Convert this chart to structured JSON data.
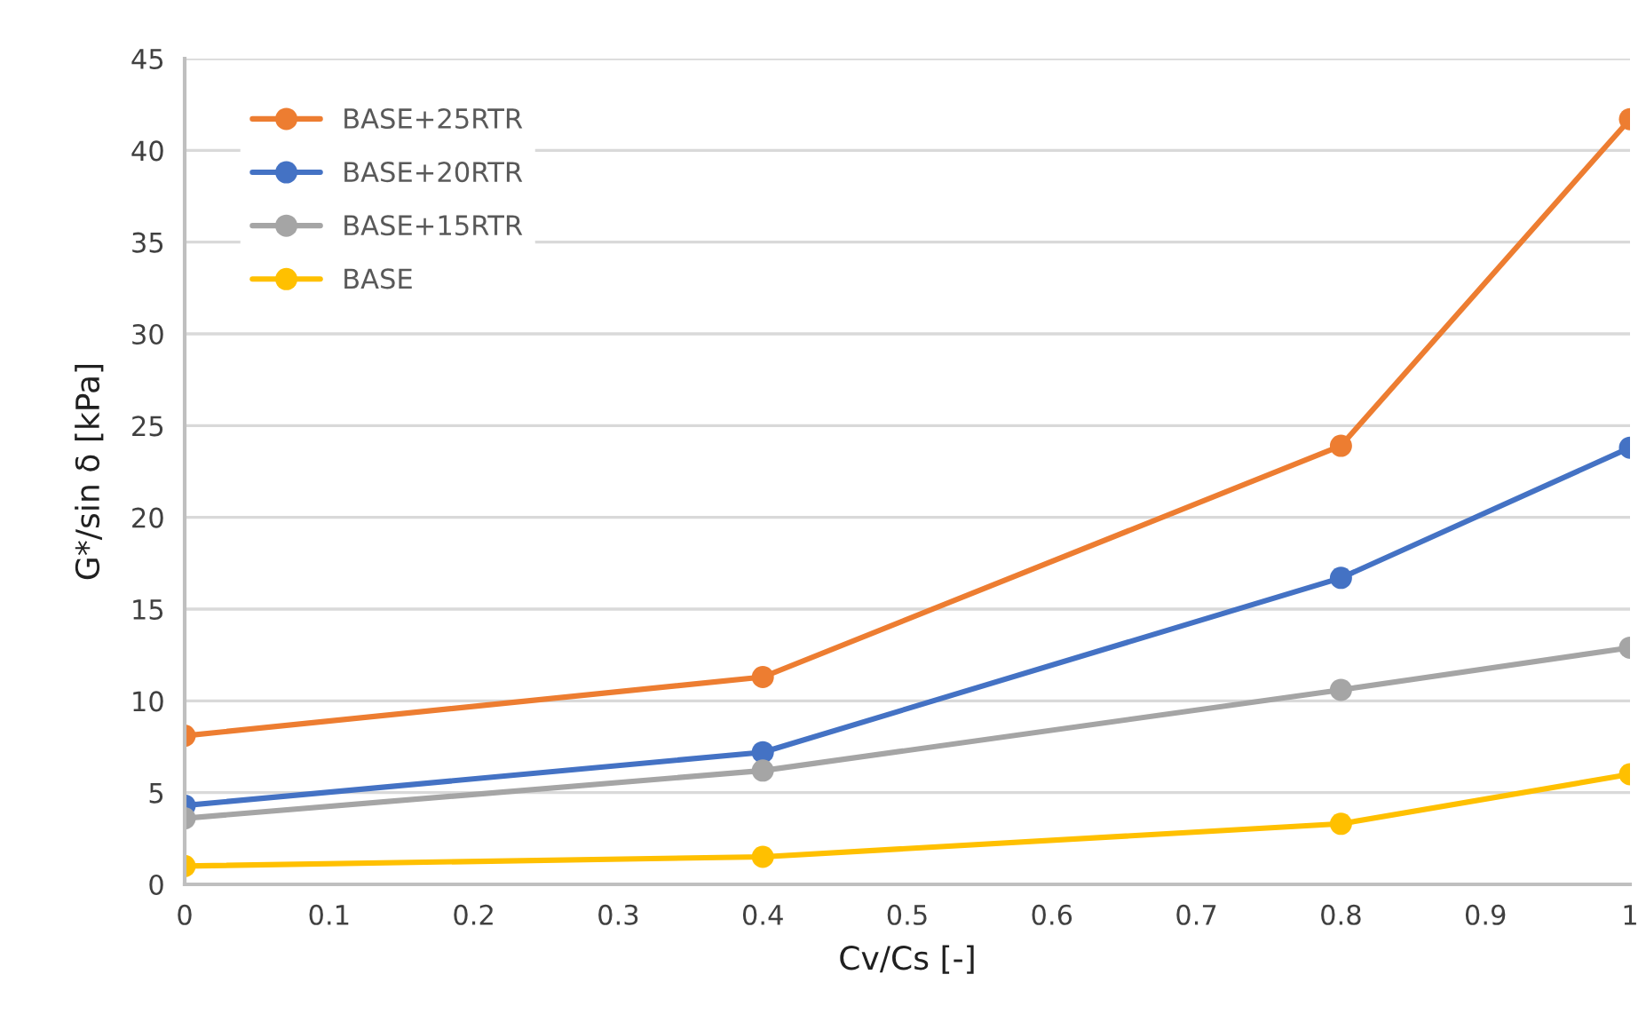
{
  "chart_data": {
    "type": "line",
    "xlabel": "Cv/Cs [-]",
    "ylabel": "G*/sin δ [kPa]",
    "x": [
      0,
      0.4,
      0.8,
      1
    ],
    "series": [
      {
        "name": "BASE+25RTR",
        "color": "#ed7d31",
        "values": [
          8.1,
          11.3,
          23.9,
          41.7
        ]
      },
      {
        "name": "BASE+20RTR",
        "color": "#4472c4",
        "values": [
          4.3,
          7.2,
          16.7,
          23.8
        ]
      },
      {
        "name": "BASE+15RTR",
        "color": "#a5a5a5",
        "values": [
          3.6,
          6.2,
          10.6,
          12.9
        ]
      },
      {
        "name": "BASE",
        "color": "#ffc000",
        "values": [
          1.0,
          1.5,
          3.3,
          6.0
        ]
      }
    ],
    "xlim": [
      0,
      1
    ],
    "xticks": [
      0,
      0.1,
      0.2,
      0.3,
      0.4,
      0.5,
      0.6,
      0.7,
      0.8,
      0.9,
      1
    ],
    "ylim": [
      0,
      45
    ],
    "yticks": [
      0,
      5,
      10,
      15,
      20,
      25,
      30,
      35,
      40,
      45
    ],
    "grid": "y",
    "legend": "top left",
    "marker": "circle",
    "line_style": "solid"
  }
}
